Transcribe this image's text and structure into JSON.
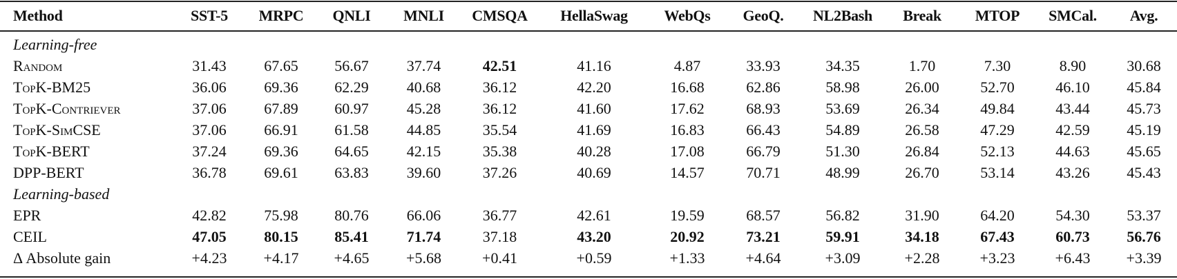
{
  "table": {
    "columns": [
      "Method",
      "SST-5",
      "MRPC",
      "QNLI",
      "MNLI",
      "CMSQA",
      "HellaSwag",
      "WebQs",
      "GeoQ.",
      "NL2Bash",
      "Break",
      "MTOP",
      "SMCal.",
      "Avg."
    ],
    "groups": [
      {
        "label": "Learning-free",
        "rows": [
          {
            "method": "Random",
            "smallcaps": true,
            "values": [
              "31.43",
              "67.65",
              "56.67",
              "37.74",
              "42.51",
              "41.16",
              "4.87",
              "33.93",
              "34.35",
              "1.70",
              "7.30",
              "8.90",
              "30.68"
            ],
            "bold": [
              4
            ]
          },
          {
            "method": "TopK-BM25",
            "smallcaps": true,
            "values": [
              "36.06",
              "69.36",
              "62.29",
              "40.68",
              "36.12",
              "42.20",
              "16.68",
              "62.86",
              "58.98",
              "26.00",
              "52.70",
              "46.10",
              "45.84"
            ],
            "bold": []
          },
          {
            "method": "TopK-Contriever",
            "smallcaps": true,
            "values": [
              "37.06",
              "67.89",
              "60.97",
              "45.28",
              "36.12",
              "41.60",
              "17.62",
              "68.93",
              "53.69",
              "26.34",
              "49.84",
              "43.44",
              "45.73"
            ],
            "bold": []
          },
          {
            "method": "TopK-SimCSE",
            "smallcaps": true,
            "values": [
              "37.06",
              "66.91",
              "61.58",
              "44.85",
              "35.54",
              "41.69",
              "16.83",
              "66.43",
              "54.89",
              "26.58",
              "47.29",
              "42.59",
              "45.19"
            ],
            "bold": []
          },
          {
            "method": "TopK-BERT",
            "smallcaps": true,
            "values": [
              "37.24",
              "69.36",
              "64.65",
              "42.15",
              "35.38",
              "40.28",
              "17.08",
              "66.79",
              "51.30",
              "26.84",
              "52.13",
              "44.63",
              "45.65"
            ],
            "bold": []
          },
          {
            "method": "DPP-BERT",
            "smallcaps": false,
            "values": [
              "36.78",
              "69.61",
              "63.83",
              "39.60",
              "37.26",
              "40.69",
              "14.57",
              "70.71",
              "48.99",
              "26.70",
              "53.14",
              "43.26",
              "45.43"
            ],
            "bold": []
          }
        ]
      },
      {
        "label": "Learning-based",
        "rows": [
          {
            "method": "EPR",
            "smallcaps": false,
            "values": [
              "42.82",
              "75.98",
              "80.76",
              "66.06",
              "36.77",
              "42.61",
              "19.59",
              "68.57",
              "56.82",
              "31.90",
              "64.20",
              "54.30",
              "53.37"
            ],
            "bold": []
          },
          {
            "method": "CEIL",
            "smallcaps": false,
            "values": [
              "47.05",
              "80.15",
              "85.41",
              "71.74",
              "37.18",
              "43.20",
              "20.92",
              "73.21",
              "59.91",
              "34.18",
              "67.43",
              "60.73",
              "56.76"
            ],
            "bold": [
              0,
              1,
              2,
              3,
              5,
              6,
              7,
              8,
              9,
              10,
              11,
              12
            ]
          },
          {
            "method": "Δ Absolute gain",
            "smallcaps": false,
            "values": [
              "+4.23",
              "+4.17",
              "+4.65",
              "+5.68",
              "+0.41",
              "+0.59",
              "+1.33",
              "+4.64",
              "+3.09",
              "+2.28",
              "+3.23",
              "+6.43",
              "+3.39"
            ],
            "bold": []
          }
        ]
      }
    ]
  }
}
